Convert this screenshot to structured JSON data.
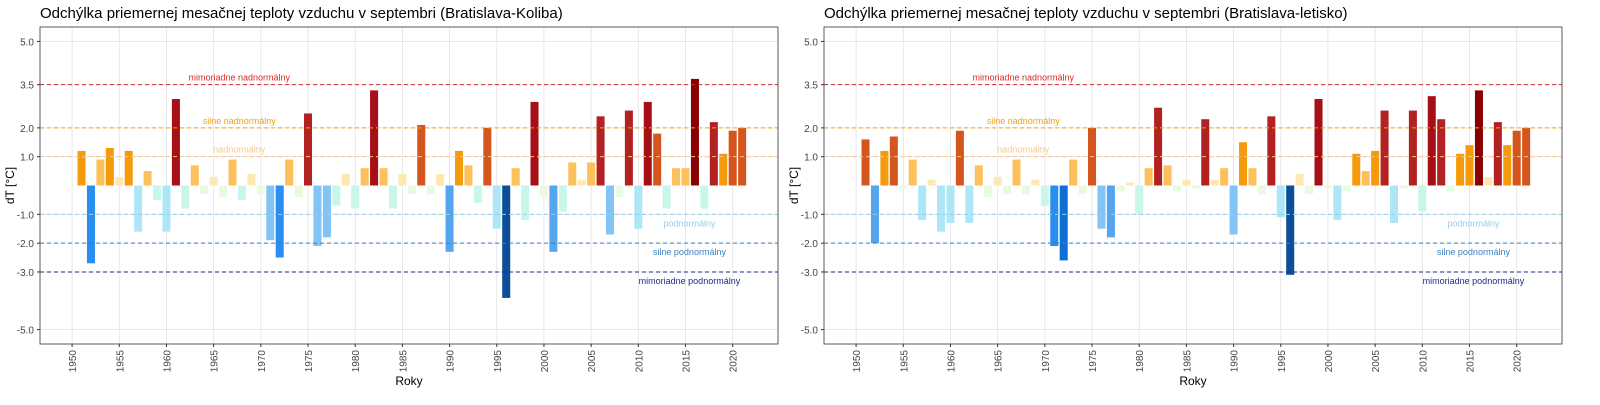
{
  "chart_data": [
    {
      "type": "bar",
      "title": "Odchýlka priemernej mesačnej teploty vzduchu v septembri (Bratislava-Koliba)",
      "x_label": "Roky",
      "y_label": "dT [°C]",
      "x": [
        1951,
        1952,
        1953,
        1954,
        1955,
        1956,
        1957,
        1958,
        1959,
        1960,
        1961,
        1962,
        1963,
        1964,
        1965,
        1966,
        1967,
        1968,
        1969,
        1970,
        1971,
        1972,
        1973,
        1974,
        1975,
        1976,
        1977,
        1978,
        1979,
        1980,
        1981,
        1982,
        1983,
        1984,
        1985,
        1986,
        1987,
        1988,
        1989,
        1990,
        1991,
        1992,
        1993,
        1994,
        1995,
        1996,
        1997,
        1998,
        1999,
        2000,
        2001,
        2002,
        2003,
        2004,
        2005,
        2006,
        2007,
        2008,
        2009,
        2010,
        2011,
        2012,
        2013,
        2014,
        2015,
        2016,
        2017,
        2018,
        2019,
        2020,
        2021
      ],
      "values": [
        1.2,
        -2.7,
        0.9,
        1.3,
        0.3,
        1.2,
        -1.6,
        0.5,
        -0.5,
        -1.6,
        3.0,
        -0.8,
        0.7,
        -0.3,
        0.3,
        -0.4,
        0.9,
        -0.5,
        0.4,
        -0.3,
        -1.9,
        -2.5,
        0.9,
        -0.4,
        2.5,
        -2.1,
        -1.8,
        -0.7,
        0.4,
        -0.8,
        0.6,
        3.3,
        0.6,
        -0.8,
        0.4,
        -0.3,
        2.1,
        -0.3,
        0.4,
        -2.3,
        1.2,
        0.7,
        -0.6,
        2.0,
        -1.5,
        -3.9,
        0.6,
        -1.2,
        2.9,
        -0.4,
        -2.3,
        -0.9,
        0.8,
        0.2,
        0.8,
        2.4,
        -1.7,
        -0.4,
        2.6,
        -1.5,
        2.9,
        1.8,
        -0.8,
        0.6,
        0.6,
        3.7,
        -0.8,
        2.2,
        1.1,
        1.9,
        2.0
      ],
      "colors": [
        "#f59b0b",
        "#2a8ef0",
        "#fdc05a",
        "#f59b0b",
        "#fde8b0",
        "#f59b0b",
        "#aee6f8",
        "#fdc05a",
        "#c8f7ea",
        "#aee6f8",
        "#a50f15",
        "#c8f7ea",
        "#fdc05a",
        "#e8fbe0",
        "#fde8b0",
        "#e8fbe0",
        "#fdc05a",
        "#c8f7ea",
        "#fde8b0",
        "#e8fbe0",
        "#82c4f5",
        "#2a8ef0",
        "#fdc05a",
        "#e8fbe0",
        "#b22222",
        "#82c4f5",
        "#82c4f5",
        "#c8f7ea",
        "#fde8b0",
        "#c8f7ea",
        "#fdc05a",
        "#a50f15",
        "#fdc05a",
        "#c8f7ea",
        "#fde8b0",
        "#e8fbe0",
        "#d4561e",
        "#e8fbe0",
        "#fde8b0",
        "#55a5ee",
        "#f59b0b",
        "#fdc05a",
        "#c8f7ea",
        "#d4561e",
        "#aee6f8",
        "#0b4f99",
        "#fdc05a",
        "#c8f7ea",
        "#a50f15",
        "#e8fbe0",
        "#55a5ee",
        "#c8f7ea",
        "#fdc05a",
        "#fde8b0",
        "#fdc05a",
        "#b22222",
        "#82c4f5",
        "#e8fbe0",
        "#b22222",
        "#aee6f8",
        "#a50f15",
        "#d4561e",
        "#c8f7ea",
        "#fdc05a",
        "#fdc05a",
        "#8b0000",
        "#c8f7ea",
        "#b22222",
        "#f59b0b",
        "#d4561e",
        "#d4561e"
      ],
      "xlim": [
        1946.6,
        2024.8
      ],
      "ylim": [
        -5.5,
        5.5
      ],
      "xticks": [
        1950,
        1955,
        1960,
        1965,
        1970,
        1975,
        1980,
        1985,
        1990,
        1995,
        2000,
        2005,
        2010,
        2015,
        2020
      ],
      "yticks": [
        {
          "value": 5,
          "label": "5.0"
        },
        {
          "value": 3.5,
          "label": "3.5"
        },
        {
          "value": 2,
          "label": "2.0"
        },
        {
          "value": 1,
          "label": "1.0"
        },
        {
          "value": -1,
          "label": "-1.0"
        },
        {
          "value": -2,
          "label": "-2.0"
        },
        {
          "value": -3,
          "label": "-3.0"
        },
        {
          "value": -5,
          "label": "-5.0"
        }
      ],
      "thresholds": [
        {
          "value": 3.5,
          "label": "mimoriadne nadnormálny",
          "color": "#d42a2a"
        },
        {
          "value": 2,
          "label": "silne nadnormálny",
          "color": "#f5a00a"
        },
        {
          "value": 1,
          "label": "nadnormálny",
          "color": "#f7c889"
        },
        {
          "value": -1,
          "label": "podnormálny",
          "color": "#8fd0ea"
        },
        {
          "value": -2,
          "label": "silne podnormálny",
          "color": "#3a7fc0"
        },
        {
          "value": -3,
          "label": "mimoriadne podnormálny",
          "color": "#1a2a90"
        }
      ],
      "grid": true
    },
    {
      "type": "bar",
      "title": "Odchýlka priemernej mesačnej teploty vzduchu v septembri (Bratislava-letisko)",
      "x_label": "Roky",
      "y_label": "dT [°C]",
      "x": [
        1951,
        1952,
        1953,
        1954,
        1955,
        1956,
        1957,
        1958,
        1959,
        1960,
        1961,
        1962,
        1963,
        1964,
        1965,
        1966,
        1967,
        1968,
        1969,
        1970,
        1971,
        1972,
        1973,
        1974,
        1975,
        1976,
        1977,
        1978,
        1979,
        1980,
        1981,
        1982,
        1983,
        1984,
        1985,
        1986,
        1987,
        1988,
        1989,
        1990,
        1991,
        1992,
        1993,
        1994,
        1995,
        1996,
        1997,
        1998,
        1999,
        2000,
        2001,
        2002,
        2003,
        2004,
        2005,
        2006,
        2007,
        2008,
        2009,
        2010,
        2011,
        2012,
        2013,
        2014,
        2015,
        2016,
        2017,
        2018,
        2019,
        2020,
        2021
      ],
      "values": [
        1.6,
        -2.0,
        1.2,
        1.7,
        -0.1,
        0.9,
        -1.2,
        0.2,
        -1.6,
        -1.3,
        1.9,
        -1.3,
        0.7,
        -0.4,
        0.3,
        -0.3,
        0.9,
        -0.3,
        0.2,
        -0.7,
        -2.1,
        -2.6,
        0.9,
        -0.3,
        2.0,
        -1.5,
        -1.8,
        -0.2,
        0.1,
        -1.0,
        0.6,
        2.7,
        0.7,
        -0.2,
        0.2,
        -0.1,
        2.3,
        0.2,
        0.6,
        -1.7,
        1.5,
        0.6,
        -0.3,
        2.4,
        -1.1,
        -3.1,
        0.4,
        -0.3,
        3.0,
        -0.1,
        -1.2,
        -0.2,
        1.1,
        0.5,
        1.2,
        2.6,
        -1.3,
        -0.1,
        2.6,
        -0.9,
        3.1,
        2.3,
        -0.2,
        1.1,
        1.4,
        3.3,
        0.3,
        2.2,
        1.4,
        1.9,
        2.0
      ],
      "colors": [
        "#d4561e",
        "#55a5ee",
        "#f59b0b",
        "#d4561e",
        "#e8fbe0",
        "#fdc05a",
        "#aee6f8",
        "#fde8b0",
        "#aee6f8",
        "#aee6f8",
        "#d4561e",
        "#aee6f8",
        "#fdc05a",
        "#e8fbe0",
        "#fde8b0",
        "#e8fbe0",
        "#fdc05a",
        "#e8fbe0",
        "#fde8b0",
        "#c8f7ea",
        "#2a8ef0",
        "#0b6fd6",
        "#fdc05a",
        "#e8fbe0",
        "#d4561e",
        "#82c4f5",
        "#55a5ee",
        "#e8fbe0",
        "#fde8b0",
        "#c8f7ea",
        "#fdc05a",
        "#b22222",
        "#fdc05a",
        "#e8fbe0",
        "#fde8b0",
        "#e8fbe0",
        "#b22222",
        "#fde8b0",
        "#fdc05a",
        "#82c4f5",
        "#f59b0b",
        "#fdc05a",
        "#e8fbe0",
        "#b22222",
        "#aee6f8",
        "#0b4f99",
        "#fde8b0",
        "#e8fbe0",
        "#a50f15",
        "#e8fbe0",
        "#aee6f8",
        "#e8fbe0",
        "#f59b0b",
        "#fdc05a",
        "#f59b0b",
        "#b22222",
        "#aee6f8",
        "#e8fbe0",
        "#b22222",
        "#c8f7ea",
        "#a50f15",
        "#b22222",
        "#e8fbe0",
        "#f59b0b",
        "#f59b0b",
        "#8b0000",
        "#fde8b0",
        "#b22222",
        "#f59b0b",
        "#d4561e",
        "#d4561e"
      ],
      "xlim": [
        1946.6,
        2024.8
      ],
      "ylim": [
        -5.5,
        5.5
      ],
      "xticks": [
        1950,
        1955,
        1960,
        1965,
        1970,
        1975,
        1980,
        1985,
        1990,
        1995,
        2000,
        2005,
        2010,
        2015,
        2020
      ],
      "yticks": [
        {
          "value": 5,
          "label": "5.0"
        },
        {
          "value": 3.5,
          "label": "3.5"
        },
        {
          "value": 2,
          "label": "2.0"
        },
        {
          "value": 1,
          "label": "1.0"
        },
        {
          "value": -1,
          "label": "-1.0"
        },
        {
          "value": -2,
          "label": "-2.0"
        },
        {
          "value": -3,
          "label": "-3.0"
        },
        {
          "value": -5,
          "label": "-5.0"
        }
      ],
      "thresholds": [
        {
          "value": 3.5,
          "label": "mimoriadne nadnormálny",
          "color": "#d42a2a"
        },
        {
          "value": 2,
          "label": "silne nadnormálny",
          "color": "#f5a00a"
        },
        {
          "value": 1,
          "label": "nadnormálny",
          "color": "#f7c889"
        },
        {
          "value": -1,
          "label": "podnormálny",
          "color": "#8fd0ea"
        },
        {
          "value": -2,
          "label": "silne podnormálny",
          "color": "#3a7fc0"
        },
        {
          "value": -3,
          "label": "mimoriadne podnormálny",
          "color": "#1a2a90"
        }
      ],
      "grid": true
    }
  ]
}
